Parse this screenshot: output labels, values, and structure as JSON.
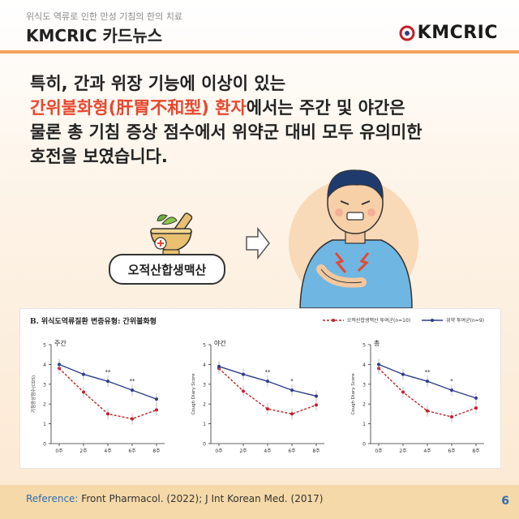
{
  "header": {
    "subtitle": "위식도 역류로 인한 만성 기침의 한의 치료",
    "title": "KMCRIC 카드뉴스",
    "logo_text": "KMCRIC"
  },
  "headline": {
    "line1": "특히, 간과 위장 기능에 이상이 있는",
    "line2_highlight": "간위불화형(肝胃不和型) 환자",
    "line2_rest": "에서는 주간 및 야간은",
    "line3": "물론 총 기침 증상 점수에서 위약군 대비 모두 유의미한",
    "line4": "호전을 보였습니다."
  },
  "medicine_label": "오적산합생맥산",
  "chart": {
    "title": "B. 위식도역류질환 변증유형: 간위불화형",
    "legend": [
      {
        "label": "오적산합생맥산 투여군(n=10)",
        "color": "#c0202a",
        "style": "dashed"
      },
      {
        "label": "위약 투여군(n=9)",
        "color": "#2d3d8c",
        "style": "solid"
      }
    ]
  },
  "chart_data": [
    {
      "type": "line",
      "title": "주간",
      "ylabel": "기침증상점수(CDS)",
      "categories": [
        "0주",
        "2주",
        "4주",
        "6주",
        "8주"
      ],
      "ylim": [
        0,
        5
      ],
      "yticks": [
        "0",
        "1",
        "2",
        "3",
        "4",
        "5"
      ],
      "series": [
        {
          "name": "오적산합생맥산 투여군(n=10)",
          "values": [
            3.8,
            2.6,
            1.5,
            1.25,
            1.7
          ]
        },
        {
          "name": "위약 투여군(n=9)",
          "values": [
            4.0,
            3.5,
            3.15,
            2.7,
            2.25
          ]
        }
      ],
      "annotations": [
        {
          "x": "4주",
          "text": "**"
        },
        {
          "x": "6주",
          "text": "**"
        }
      ]
    },
    {
      "type": "line",
      "title": "야간",
      "ylabel": "Cough Diary Score",
      "categories": [
        "0주",
        "2주",
        "4주",
        "6주",
        "8주"
      ],
      "ylim": [
        0,
        5
      ],
      "yticks": [
        "0",
        "1",
        "2",
        "3",
        "4",
        "5"
      ],
      "series": [
        {
          "name": "오적산합생맥산 투여군(n=10)",
          "values": [
            3.8,
            2.65,
            1.75,
            1.5,
            1.95
          ]
        },
        {
          "name": "위약 투여군(n=9)",
          "values": [
            3.9,
            3.5,
            3.15,
            2.7,
            2.4
          ]
        }
      ],
      "annotations": [
        {
          "x": "4주",
          "text": "**"
        },
        {
          "x": "6주",
          "text": "*"
        }
      ]
    },
    {
      "type": "line",
      "title": "총",
      "ylabel": "Cough Diary Score",
      "categories": [
        "0주",
        "2주",
        "4주",
        "6주",
        "8주"
      ],
      "ylim": [
        0,
        5
      ],
      "yticks": [
        "0",
        "1",
        "2",
        "3",
        "4",
        "5"
      ],
      "series": [
        {
          "name": "오적산합생맥산 투여군(n=10)",
          "values": [
            3.8,
            2.6,
            1.65,
            1.35,
            1.8
          ]
        },
        {
          "name": "위약 투여군(n=9)",
          "values": [
            4.0,
            3.5,
            3.15,
            2.7,
            2.3
          ]
        }
      ],
      "annotations": [
        {
          "x": "4주",
          "text": "**"
        },
        {
          "x": "6주",
          "text": "*"
        }
      ]
    }
  ],
  "footer": {
    "reference_label": "Reference:",
    "reference_text": " Front Pharmacol. (2022); J Int Korean Med. (2017)",
    "page_number": "6"
  },
  "colors": {
    "accent": "#e8472e",
    "divider": "#f0a25a",
    "footer_bg": "#f5d9a8",
    "treatment": "#c0202a",
    "placebo": "#2d3d8c"
  }
}
